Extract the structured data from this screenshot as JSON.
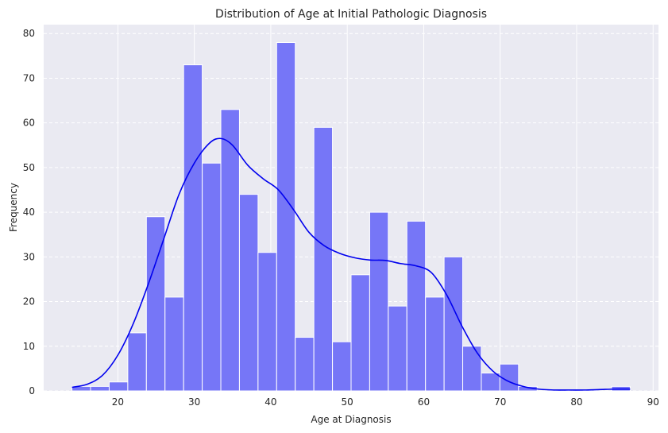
{
  "chart_data": {
    "type": "bar",
    "title": "Distribution of Age at Initial Pathologic Diagnosis",
    "xlabel": "Age at Diagnosis",
    "ylabel": "Frequency",
    "xlim": [
      10.3,
      90.7
    ],
    "ylim": [
      0,
      82
    ],
    "xticks": [
      20,
      30,
      40,
      50,
      60,
      70,
      80,
      90
    ],
    "yticks": [
      0,
      10,
      20,
      30,
      40,
      50,
      60,
      70,
      80
    ],
    "bin_start": 14.0,
    "bin_width": 2.4333,
    "values": [
      1,
      1,
      2,
      13,
      39,
      21,
      73,
      51,
      63,
      44,
      31,
      78,
      12,
      59,
      11,
      26,
      40,
      19,
      38,
      21,
      30,
      10,
      4,
      6,
      1,
      0,
      0,
      0,
      0,
      1
    ],
    "kde": {
      "x": [
        14,
        16,
        18,
        20,
        22,
        24,
        26,
        28,
        30,
        32,
        33.5,
        35,
        37,
        39,
        41,
        43,
        45,
        47,
        49,
        51,
        53,
        55,
        57,
        59,
        61,
        63,
        65,
        67,
        69,
        71,
        73,
        75,
        77,
        79,
        81,
        83,
        85,
        87
      ],
      "y": [
        0.8,
        1.5,
        3.5,
        8,
        15,
        24,
        34,
        44,
        51,
        55.5,
        56.5,
        55,
        50.5,
        47.5,
        45,
        40.5,
        35.5,
        32.5,
        30.8,
        29.8,
        29.3,
        29.2,
        28.5,
        28,
        26.5,
        21.5,
        14.5,
        8.5,
        4.5,
        2.2,
        1,
        0.4,
        0.2,
        0.2,
        0.2,
        0.3,
        0.4,
        0.4
      ]
    },
    "grid": true,
    "colors": {
      "bar": "#7676f7",
      "bar_edge": "#ffffff",
      "kde": "#0000ee",
      "plot_bg": "#eaeaf2",
      "grid": "#ffffff"
    }
  }
}
